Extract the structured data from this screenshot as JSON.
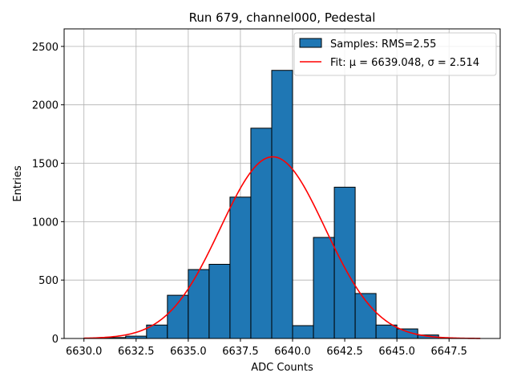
{
  "chart_data": {
    "type": "bar",
    "title": "Run 679, channel000, Pedestal",
    "xlabel": "ADC Counts",
    "ylabel": "Entries",
    "xlim": [
      6629.05,
      6649.95
    ],
    "ylim": [
      0,
      2650
    ],
    "xticks": [
      6630.0,
      6632.5,
      6635.0,
      6637.5,
      6640.0,
      6642.5,
      6645.0,
      6647.5
    ],
    "xtick_labels": [
      "6630.0",
      "6632.5",
      "6635.0",
      "6637.5",
      "6640.0",
      "6642.5",
      "6645.0",
      "6647.5"
    ],
    "yticks": [
      0,
      500,
      1000,
      1500,
      2000,
      2500
    ],
    "ytick_labels": [
      "0",
      "500",
      "1000",
      "1500",
      "2000",
      "2500"
    ],
    "grid": true,
    "legend_position": "top-right",
    "series": [
      {
        "name": "Samples: RMS=2.55",
        "kind": "histogram",
        "color": "#1f77b4",
        "edgecolor": "#000000",
        "bin_edges": [
          6630,
          6631,
          6632,
          6633,
          6634,
          6635,
          6636,
          6637,
          6638,
          6639,
          6640,
          6641,
          6642,
          6643,
          6644,
          6645,
          6646,
          6647,
          6648,
          6649
        ],
        "values": [
          3,
          8,
          20,
          115,
          370,
          590,
          635,
          1210,
          1800,
          2295,
          110,
          865,
          1295,
          385,
          115,
          82,
          30,
          0,
          0
        ]
      },
      {
        "name": "Fit: μ = 6639.048, σ = 2.514",
        "kind": "gaussian_fit",
        "color": "#ff0000",
        "mu": 6639.048,
        "sigma": 2.514,
        "amplitude": 1555,
        "x_range": [
          6630,
          6649
        ]
      }
    ]
  }
}
